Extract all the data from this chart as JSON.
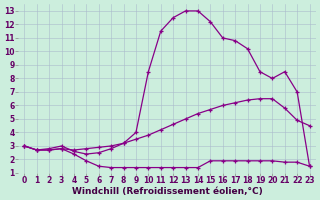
{
  "background_color": "#cceedd",
  "line_color": "#880088",
  "grid_color": "#aabbcc",
  "xlabel": "Windchill (Refroidissement éolien,°C)",
  "xlabel_fontsize": 6.5,
  "tick_fontsize": 5.5,
  "xlim": [
    -0.5,
    23.5
  ],
  "ylim": [
    1,
    13.5
  ],
  "yticks": [
    1,
    2,
    3,
    4,
    5,
    6,
    7,
    8,
    9,
    10,
    11,
    12,
    13
  ],
  "xticks": [
    0,
    1,
    2,
    3,
    4,
    5,
    6,
    7,
    8,
    9,
    10,
    11,
    12,
    13,
    14,
    15,
    16,
    17,
    18,
    19,
    20,
    21,
    22,
    23
  ],
  "curve1_x": [
    0,
    1,
    2,
    3,
    4,
    5,
    6,
    7,
    8,
    9,
    10,
    11,
    12,
    13,
    14,
    15,
    16,
    17,
    18,
    19,
    20,
    21,
    22,
    23
  ],
  "curve1_y": [
    3.0,
    2.7,
    2.7,
    2.8,
    2.4,
    1.9,
    1.5,
    1.4,
    1.4,
    1.4,
    1.4,
    1.4,
    1.4,
    1.4,
    1.4,
    1.9,
    1.9,
    1.9,
    1.9,
    1.9,
    1.9,
    1.8,
    1.8,
    1.5
  ],
  "curve2_x": [
    0,
    1,
    2,
    3,
    4,
    5,
    6,
    7,
    8,
    9,
    10,
    11,
    12,
    13,
    14,
    15,
    16,
    17,
    18,
    19,
    20,
    21,
    22,
    23
  ],
  "curve2_y": [
    3.0,
    2.7,
    2.7,
    2.8,
    2.7,
    2.8,
    2.9,
    3.0,
    3.2,
    3.5,
    3.8,
    4.2,
    4.6,
    5.0,
    5.4,
    5.7,
    6.0,
    6.2,
    6.4,
    6.5,
    6.5,
    5.8,
    4.9,
    4.5
  ],
  "curve3_x": [
    0,
    1,
    2,
    3,
    4,
    5,
    6,
    7,
    8,
    9,
    10,
    11,
    12,
    13,
    14,
    15,
    16,
    17,
    18,
    19,
    20,
    21,
    22,
    23
  ],
  "curve3_y": [
    3.0,
    2.7,
    2.8,
    3.0,
    2.6,
    2.4,
    2.5,
    2.8,
    3.2,
    4.0,
    8.5,
    11.5,
    12.5,
    13.0,
    13.0,
    12.2,
    11.0,
    10.8,
    10.2,
    8.5,
    8.0,
    8.5,
    7.0,
    1.5
  ]
}
